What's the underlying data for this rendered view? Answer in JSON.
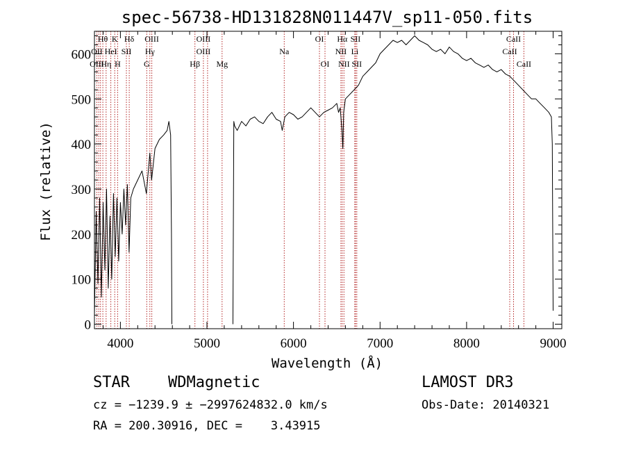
{
  "chart_data": {
    "type": "line",
    "title": "spec-56738-HD131828N011447V_sp11-050.fits",
    "xlabel": "Wavelength (Å)",
    "ylabel": "Flux (relative)",
    "xlim": [
      3700,
      9100
    ],
    "ylim": [
      -10,
      650
    ],
    "x_ticks": [
      4000,
      5000,
      6000,
      7000,
      8000,
      9000
    ],
    "y_ticks": [
      0,
      100,
      200,
      300,
      400,
      500,
      600
    ],
    "grid": false,
    "series": [
      {
        "segments": [
          {
            "x": [
              3700,
              3720,
              3740,
              3760,
              3780,
              3800,
              3820,
              3840,
              3860,
              3880,
              3900,
              3920,
              3940,
              3960,
              3980,
              4000,
              4020,
              4040,
              4060,
              4080,
              4100,
              4120,
              4150,
              4200,
              4250,
              4300,
              4340,
              4360,
              4400,
              4450,
              4500,
              4540,
              4560,
              4580,
              4590,
              4595
            ],
            "y": [
              20,
              250,
              90,
              280,
              60,
              270,
              120,
              300,
              80,
              240,
              100,
              290,
              150,
              280,
              140,
              270,
              200,
              300,
              220,
              310,
              160,
              280,
              300,
              320,
              340,
              290,
              380,
              320,
              390,
              410,
              420,
              430,
              450,
              420,
              200,
              0
            ]
          },
          {
            "x": [
              5300,
              5310,
              5320,
              5350,
              5400,
              5450,
              5500,
              5550,
              5600,
              5650,
              5700,
              5750,
              5800,
              5850,
              5870,
              5900,
              5950,
              6000,
              6050,
              6100,
              6150,
              6200,
              6250,
              6300,
              6350,
              6400,
              6450,
              6500,
              6520,
              6540,
              6560,
              6570,
              6580,
              6600,
              6650,
              6700,
              6750,
              6800,
              6850,
              6900,
              6950,
              7000,
              7050,
              7100,
              7150,
              7200,
              7250,
              7300,
              7350,
              7400,
              7450,
              7500,
              7550,
              7600,
              7650,
              7700,
              7750,
              7800,
              7850,
              7900,
              7950,
              8000,
              8050,
              8100,
              8150,
              8200,
              8250,
              8300,
              8350,
              8400,
              8450,
              8500,
              8550,
              8600,
              8650,
              8700,
              8750,
              8800,
              8850,
              8900,
              8950,
              8980,
              8990,
              9000
            ],
            "y": [
              0,
              450,
              440,
              430,
              450,
              440,
              455,
              460,
              450,
              445,
              460,
              470,
              455,
              450,
              430,
              460,
              470,
              465,
              455,
              460,
              470,
              480,
              470,
              460,
              470,
              475,
              480,
              490,
              470,
              480,
              430,
              390,
              470,
              500,
              510,
              520,
              530,
              550,
              560,
              570,
              580,
              600,
              610,
              620,
              630,
              625,
              630,
              620,
              630,
              640,
              630,
              625,
              620,
              610,
              605,
              610,
              600,
              615,
              605,
              600,
              590,
              585,
              590,
              580,
              575,
              570,
              575,
              565,
              560,
              565,
              555,
              550,
              540,
              530,
              520,
              510,
              500,
              500,
              490,
              480,
              470,
              460,
              400,
              30
            ]
          }
        ]
      }
    ],
    "spectral_lines": [
      {
        "label": "Hθ",
        "wavelength": 3797,
        "row": 0
      },
      {
        "label": "OII",
        "wavelength": 3727,
        "row": 1
      },
      {
        "label": "OIII",
        "wavelength": 3727,
        "row": 2
      },
      {
        "label": "Hη",
        "wavelength": 3835,
        "row": 2
      },
      {
        "label": "K",
        "wavelength": 3934,
        "row": 0
      },
      {
        "label": "HeI",
        "wavelength": 3889,
        "row": 1
      },
      {
        "label": "SII",
        "wavelength": 4069,
        "row": 1
      },
      {
        "label": "H",
        "wavelength": 3968,
        "row": 2
      },
      {
        "label": "Hδ",
        "wavelength": 4102,
        "row": 0
      },
      {
        "label": "OIII",
        "wavelength": 4363,
        "row": 0
      },
      {
        "label": "Hγ",
        "wavelength": 4340,
        "row": 1
      },
      {
        "label": "G",
        "wavelength": 4304,
        "row": 2
      },
      {
        "label": "OIII",
        "wavelength": 4959,
        "row": 0
      },
      {
        "label": "OIII",
        "wavelength": 4959,
        "row": 1
      },
      {
        "label": "Hβ",
        "wavelength": 4861,
        "row": 2
      },
      {
        "label": "Mg",
        "wavelength": 5175,
        "row": 2
      },
      {
        "label": "Na",
        "wavelength": 5893,
        "row": 1
      },
      {
        "label": "OI",
        "wavelength": 6300,
        "row": 0
      },
      {
        "label": "OI",
        "wavelength": 6364,
        "row": 2
      },
      {
        "label": "Hα",
        "wavelength": 6563,
        "row": 0
      },
      {
        "label": "SII",
        "wavelength": 6716,
        "row": 0
      },
      {
        "label": "NII",
        "wavelength": 6548,
        "row": 1
      },
      {
        "label": "Li",
        "wavelength": 6708,
        "row": 1
      },
      {
        "label": "NII",
        "wavelength": 6583,
        "row": 2
      },
      {
        "label": "SII",
        "wavelength": 6731,
        "row": 2
      },
      {
        "label": "CaII",
        "wavelength": 8542,
        "row": 0
      },
      {
        "label": "CaII",
        "wavelength": 8498,
        "row": 1
      },
      {
        "label": "CaII",
        "wavelength": 8662,
        "row": 2
      }
    ],
    "line_marker_wavelengths": [
      3727,
      3750,
      3770,
      3797,
      3835,
      3889,
      3934,
      3968,
      4069,
      4102,
      4304,
      4340,
      4363,
      4861,
      4959,
      5007,
      5175,
      5893,
      6300,
      6364,
      6548,
      6563,
      6583,
      6708,
      6716,
      6731,
      8498,
      8542,
      8662
    ],
    "colors": {
      "spectrum": "#000000",
      "line_markers": "#b22222",
      "axes": "#000000"
    }
  },
  "info": {
    "object_type": "STAR",
    "subclass": "WDMagnetic",
    "survey": "LAMOST DR3",
    "redshift": "cz = −1239.9 ± −2997624832.0 km/s",
    "obs_date": "Obs-Date: 20140321",
    "coords": "RA = 200.30916, DEC =    3.43915"
  }
}
